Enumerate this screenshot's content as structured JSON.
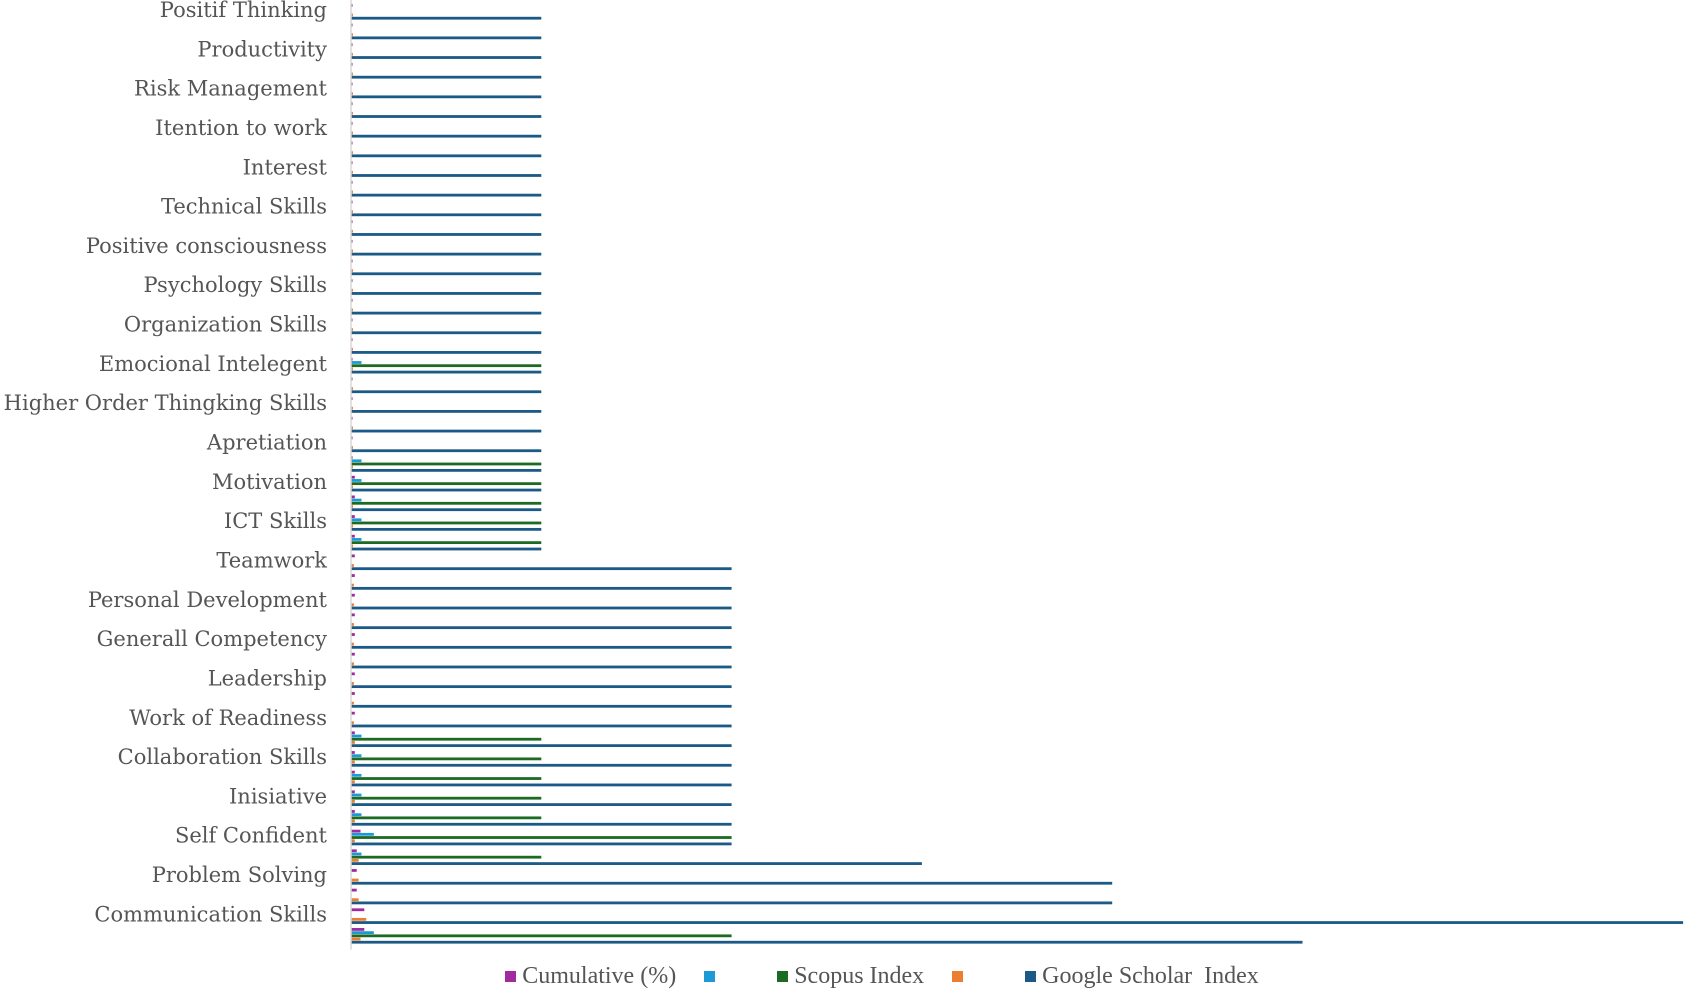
{
  "chart_data": {
    "type": "bar",
    "orientation": "horizontal",
    "title": "",
    "xlabel": "",
    "ylabel": "",
    "xlim": [
      0,
      7
    ],
    "grid": false,
    "legend_position": "bottom",
    "categories": [
      "Positif Thinking",
      "",
      "Productivity",
      "",
      "Risk Management",
      "",
      "Itention to work",
      "",
      "Interest",
      "",
      "Technical Skills",
      "",
      "Positive consciousness",
      "",
      "Psychology Skills",
      "",
      "Organization Skills",
      "",
      "Emocional Intelegent",
      "",
      "Higher Order Thingking Skills",
      "",
      "Apretiation",
      "",
      "Motivation",
      "",
      "ICT Skills",
      "",
      "Teamwork",
      "",
      "Personal Development",
      "",
      "Generall Competency",
      "",
      "Leadership",
      "",
      "Work of Readiness",
      "",
      "Collaboration Skills",
      "",
      "Inisiative",
      "",
      "Self Confident",
      "",
      "Problem Solving",
      "",
      "Communication Skills",
      ""
    ],
    "series": [
      {
        "name": "Cumulative (%)",
        "color": "#a02b9c",
        "values": [
          0.005,
          0.005,
          0.005,
          0.005,
          0.005,
          0.005,
          0.005,
          0.005,
          0.005,
          0.005,
          0.005,
          0.005,
          0.005,
          0.005,
          0.005,
          0.005,
          0.005,
          0.005,
          0.005,
          0.005,
          0.005,
          0.005,
          0.005,
          0.005,
          0.02,
          0.02,
          0.02,
          0.02,
          0.02,
          0.02,
          0.02,
          0.02,
          0.02,
          0.02,
          0.02,
          0.02,
          0.02,
          0.02,
          0.02,
          0.02,
          0.02,
          0.02,
          0.05,
          0.03,
          0.03,
          0.03,
          0.07,
          0.07
        ]
      },
      {
        "name": "",
        "color": "#1c9ad6",
        "values": [
          0,
          0,
          0,
          0,
          0,
          0,
          0,
          0,
          0,
          0,
          0,
          0,
          0,
          0,
          0,
          0,
          0,
          0,
          0.055,
          0,
          0,
          0,
          0,
          0.055,
          0.055,
          0.055,
          0.055,
          0.055,
          0,
          0,
          0,
          0,
          0,
          0,
          0,
          0,
          0,
          0.055,
          0.055,
          0.055,
          0.055,
          0.055,
          0.12,
          0.055,
          0,
          0,
          0,
          0.12
        ]
      },
      {
        "name": "Scopus Index",
        "color": "#1d6b22",
        "values": [
          0,
          0,
          0,
          0,
          0,
          0,
          0,
          0,
          0,
          0,
          0,
          0,
          0,
          0,
          0,
          0,
          0,
          0,
          1,
          0,
          0,
          0,
          0,
          1,
          1,
          1,
          1,
          1,
          0,
          0,
          0,
          0,
          0,
          0,
          0,
          0,
          0,
          1,
          1,
          1,
          1,
          1,
          2,
          1,
          0,
          0,
          0,
          2
        ]
      },
      {
        "name": "",
        "color": "#ed7d31",
        "values": [
          0.01,
          0.01,
          0.01,
          0.01,
          0.01,
          0.01,
          0.01,
          0.01,
          0.01,
          0.01,
          0.01,
          0.01,
          0.01,
          0.01,
          0.01,
          0.01,
          0.01,
          0.01,
          0.01,
          0.01,
          0.01,
          0.01,
          0.01,
          0.01,
          0.01,
          0.01,
          0.01,
          0.01,
          0.015,
          0.015,
          0.015,
          0.015,
          0.015,
          0.015,
          0.015,
          0.015,
          0.015,
          0.02,
          0.02,
          0.02,
          0.02,
          0.02,
          0.02,
          0.04,
          0.04,
          0.04,
          0.08,
          0.05
        ]
      },
      {
        "name": "Google Scholar  Index",
        "color": "#1b5a86",
        "values": [
          1,
          1,
          1,
          1,
          1,
          1,
          1,
          1,
          1,
          1,
          1,
          1,
          1,
          1,
          1,
          1,
          1,
          1,
          1,
          1,
          1,
          1,
          1,
          1,
          1,
          1,
          1,
          1,
          2,
          2,
          2,
          2,
          2,
          2,
          2,
          2,
          2,
          2,
          2,
          2,
          2,
          2,
          2,
          3,
          4,
          4,
          7,
          5
        ]
      }
    ]
  }
}
